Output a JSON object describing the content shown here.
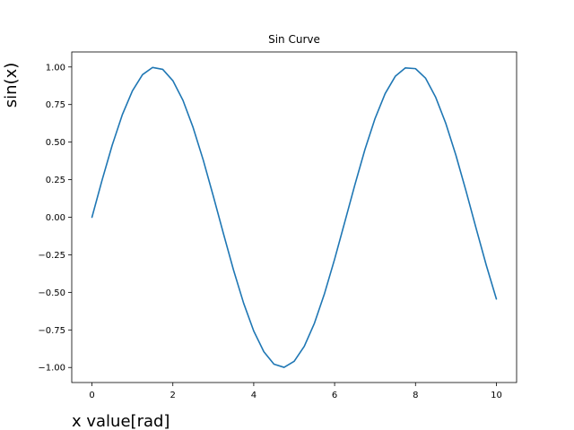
{
  "chart_data": {
    "type": "line",
    "title": "Sin Curve",
    "xlabel": "x value[rad]",
    "ylabel": "sin(x)",
    "xlim": [
      -0.5,
      10.5
    ],
    "ylim": [
      -1.1,
      1.1
    ],
    "x_ticks": [
      0,
      2,
      4,
      6,
      8,
      10
    ],
    "y_ticks": [
      -1.0,
      -0.75,
      -0.5,
      -0.25,
      0.0,
      0.25,
      0.5,
      0.75,
      1.0
    ],
    "x_tick_labels": [
      "0",
      "2",
      "4",
      "6",
      "8",
      "10"
    ],
    "y_tick_labels": [
      "−1.00",
      "−0.75",
      "−0.50",
      "−0.25",
      "0.00",
      "0.25",
      "0.50",
      "0.75",
      "1.00"
    ],
    "grid": false,
    "series": [
      {
        "color": "#1f77b4",
        "x": [
          0,
          0.25,
          0.5,
          0.75,
          1.0,
          1.25,
          1.5,
          1.75,
          2.0,
          2.25,
          2.5,
          2.75,
          3.0,
          3.25,
          3.5,
          3.75,
          4.0,
          4.25,
          4.5,
          4.75,
          5.0,
          5.25,
          5.5,
          5.75,
          6.0,
          6.25,
          6.5,
          6.75,
          7.0,
          7.25,
          7.5,
          7.75,
          8.0,
          8.25,
          8.5,
          8.75,
          9.0,
          9.25,
          9.5,
          9.75,
          10.0
        ],
        "y": [
          0.0,
          0.247,
          0.479,
          0.682,
          0.841,
          0.949,
          0.997,
          0.984,
          0.909,
          0.778,
          0.598,
          0.382,
          0.141,
          -0.108,
          -0.351,
          -0.572,
          -0.757,
          -0.895,
          -0.978,
          -0.999,
          -0.959,
          -0.859,
          -0.706,
          -0.508,
          -0.279,
          -0.033,
          0.215,
          0.451,
          0.657,
          0.823,
          0.938,
          0.994,
          0.989,
          0.925,
          0.798,
          0.624,
          0.412,
          0.174,
          -0.075,
          -0.319,
          -0.544
        ]
      }
    ]
  }
}
